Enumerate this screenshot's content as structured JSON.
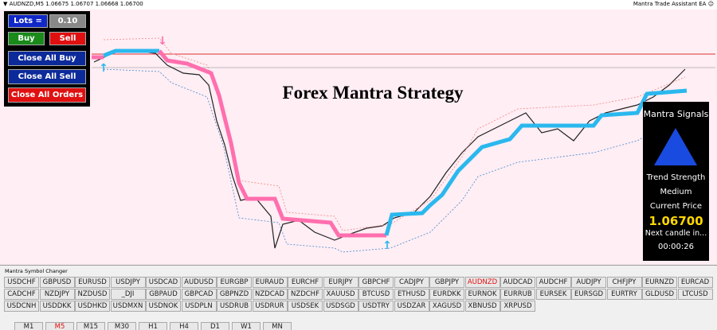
{
  "header": {
    "symbol_info": "AUDNZD,M5  1.06675 1.06707 1.06668 1.06700",
    "ea_name": "Mantra Trade Assistant EA"
  },
  "chart": {
    "title": "Forex Mantra Strategy"
  },
  "trade_panel": {
    "lots_label": "Lots =",
    "lots_value": "0.10",
    "buy": "Buy",
    "sell": "Sell",
    "close_buy": "Close All Buy",
    "close_sell": "Close All Sell",
    "close_all": "Close All Orders"
  },
  "signals_panel": {
    "title": "Mantra Signals",
    "strength_label": "Trend Strength",
    "strength_value": "Medium",
    "price_label": "Current Price",
    "price_value": "1.06700",
    "next_label": "Next candle in...",
    "countdown": "00:00:26"
  },
  "symbol_changer": {
    "title": "Mantra Symbol Changer",
    "active": "AUDNZD",
    "rows": [
      [
        "USDCHF",
        "GBPUSD",
        "EURUSD",
        "USDJPY",
        "USDCAD",
        "AUDUSD",
        "EURGBP",
        "EURAUD",
        "EURCHF",
        "EURJPY",
        "GBPCHF",
        "CADJPY",
        "GBPJPY",
        "AUDNZD",
        "AUDCAD",
        "AUDCHF",
        "AUDJPY",
        "CHFJPY",
        "EURNZD",
        "EURCAD"
      ],
      [
        "CADCHF",
        "NZDJPY",
        "NZDUSD",
        "_DJI",
        "GBPAUD",
        "GBPCAD",
        "GBPNZD",
        "NZDCAD",
        "NZDCHF",
        "XAUUSD",
        "BTCUSD",
        "ETHUSD",
        "EURDKK",
        "EURNOK",
        "EURRUB",
        "EURSEK",
        "EURSGD",
        "EURTRY",
        "GLDUSD",
        "LTCUSD"
      ],
      [
        "USDCNH",
        "USDDKK",
        "USDHKD",
        "USDMXN",
        "USDNOK",
        "USDPLN",
        "USDRUB",
        "USDRUR",
        "USDSEK",
        "USDSGD",
        "USDTRY",
        "USDZAR",
        "XAGUSD",
        "XBNUSD",
        "XRPUSD"
      ]
    ]
  },
  "timeframes": {
    "active": "M5",
    "items": [
      "M1",
      "M5",
      "M15",
      "M30",
      "H1",
      "H4",
      "D1",
      "W1",
      "MN"
    ]
  }
}
